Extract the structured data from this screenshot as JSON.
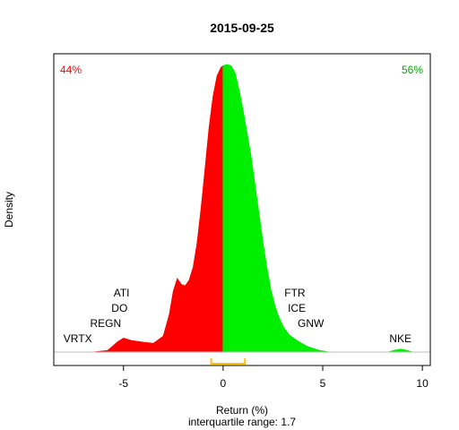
{
  "chart_data": {
    "type": "area",
    "title": "2015-09-25",
    "xlabel": "Return (%)",
    "subtitle": "interquartile range: 1.7",
    "ylabel": "Density",
    "xlim": [
      -8.5,
      10.4
    ],
    "ylim": [
      0,
      1
    ],
    "x_ticks": [
      -5,
      0,
      5,
      10
    ],
    "x_tick_labels": [
      "-5",
      "0",
      "5",
      "10"
    ],
    "split_at": 0,
    "negative_share": "44%",
    "positive_share": "56%",
    "colors": {
      "negative": "#ff0000",
      "positive": "#00ee00",
      "negative_label": "#ff0000",
      "positive_label": "#00aa00",
      "iqr_bracket": "#ffc000",
      "baseline": "#bebebe"
    },
    "interquartile_range": [
      -0.6,
      1.1
    ],
    "density_curve": [
      {
        "x": -7.8,
        "y": 0.0
      },
      {
        "x": -6.5,
        "y": 0.0
      },
      {
        "x": -5.8,
        "y": 0.005
      },
      {
        "x": -5.3,
        "y": 0.035
      },
      {
        "x": -5.0,
        "y": 0.048
      },
      {
        "x": -4.6,
        "y": 0.04
      },
      {
        "x": -4.0,
        "y": 0.034
      },
      {
        "x": -3.5,
        "y": 0.03
      },
      {
        "x": -3.0,
        "y": 0.055
      },
      {
        "x": -2.7,
        "y": 0.13
      },
      {
        "x": -2.5,
        "y": 0.21
      },
      {
        "x": -2.3,
        "y": 0.255
      },
      {
        "x": -2.1,
        "y": 0.235
      },
      {
        "x": -1.9,
        "y": 0.23
      },
      {
        "x": -1.7,
        "y": 0.25
      },
      {
        "x": -1.5,
        "y": 0.295
      },
      {
        "x": -1.3,
        "y": 0.38
      },
      {
        "x": -1.1,
        "y": 0.5
      },
      {
        "x": -0.9,
        "y": 0.64
      },
      {
        "x": -0.7,
        "y": 0.78
      },
      {
        "x": -0.5,
        "y": 0.89
      },
      {
        "x": -0.3,
        "y": 0.96
      },
      {
        "x": -0.1,
        "y": 0.99
      },
      {
        "x": 0.0,
        "y": 0.995
      },
      {
        "x": 0.2,
        "y": 1.0
      },
      {
        "x": 0.4,
        "y": 0.995
      },
      {
        "x": 0.6,
        "y": 0.97
      },
      {
        "x": 0.8,
        "y": 0.91
      },
      {
        "x": 1.0,
        "y": 0.84
      },
      {
        "x": 1.2,
        "y": 0.76
      },
      {
        "x": 1.4,
        "y": 0.68
      },
      {
        "x": 1.6,
        "y": 0.58
      },
      {
        "x": 1.8,
        "y": 0.48
      },
      {
        "x": 2.0,
        "y": 0.38
      },
      {
        "x": 2.2,
        "y": 0.29
      },
      {
        "x": 2.4,
        "y": 0.215
      },
      {
        "x": 2.6,
        "y": 0.16
      },
      {
        "x": 2.8,
        "y": 0.12
      },
      {
        "x": 3.0,
        "y": 0.09
      },
      {
        "x": 3.3,
        "y": 0.06
      },
      {
        "x": 3.7,
        "y": 0.04
      },
      {
        "x": 4.2,
        "y": 0.02
      },
      {
        "x": 4.8,
        "y": 0.006
      },
      {
        "x": 5.3,
        "y": 0.0
      },
      {
        "x": 8.3,
        "y": 0.0
      },
      {
        "x": 8.6,
        "y": 0.006
      },
      {
        "x": 8.9,
        "y": 0.01
      },
      {
        "x": 9.2,
        "y": 0.006
      },
      {
        "x": 9.5,
        "y": 0.0
      }
    ],
    "annotations": [
      {
        "label": "ATI",
        "x": -5.1,
        "row": 4
      },
      {
        "label": "DO",
        "x": -5.2,
        "row": 3
      },
      {
        "label": "REGN",
        "x": -5.9,
        "row": 2
      },
      {
        "label": "VRTX",
        "x": -7.3,
        "row": 1
      },
      {
        "label": "FTR",
        "x": 3.6,
        "row": 4
      },
      {
        "label": "ICE",
        "x": 3.7,
        "row": 3
      },
      {
        "label": "GNW",
        "x": 4.4,
        "row": 2
      },
      {
        "label": "NKE",
        "x": 8.9,
        "row": 1
      }
    ]
  }
}
